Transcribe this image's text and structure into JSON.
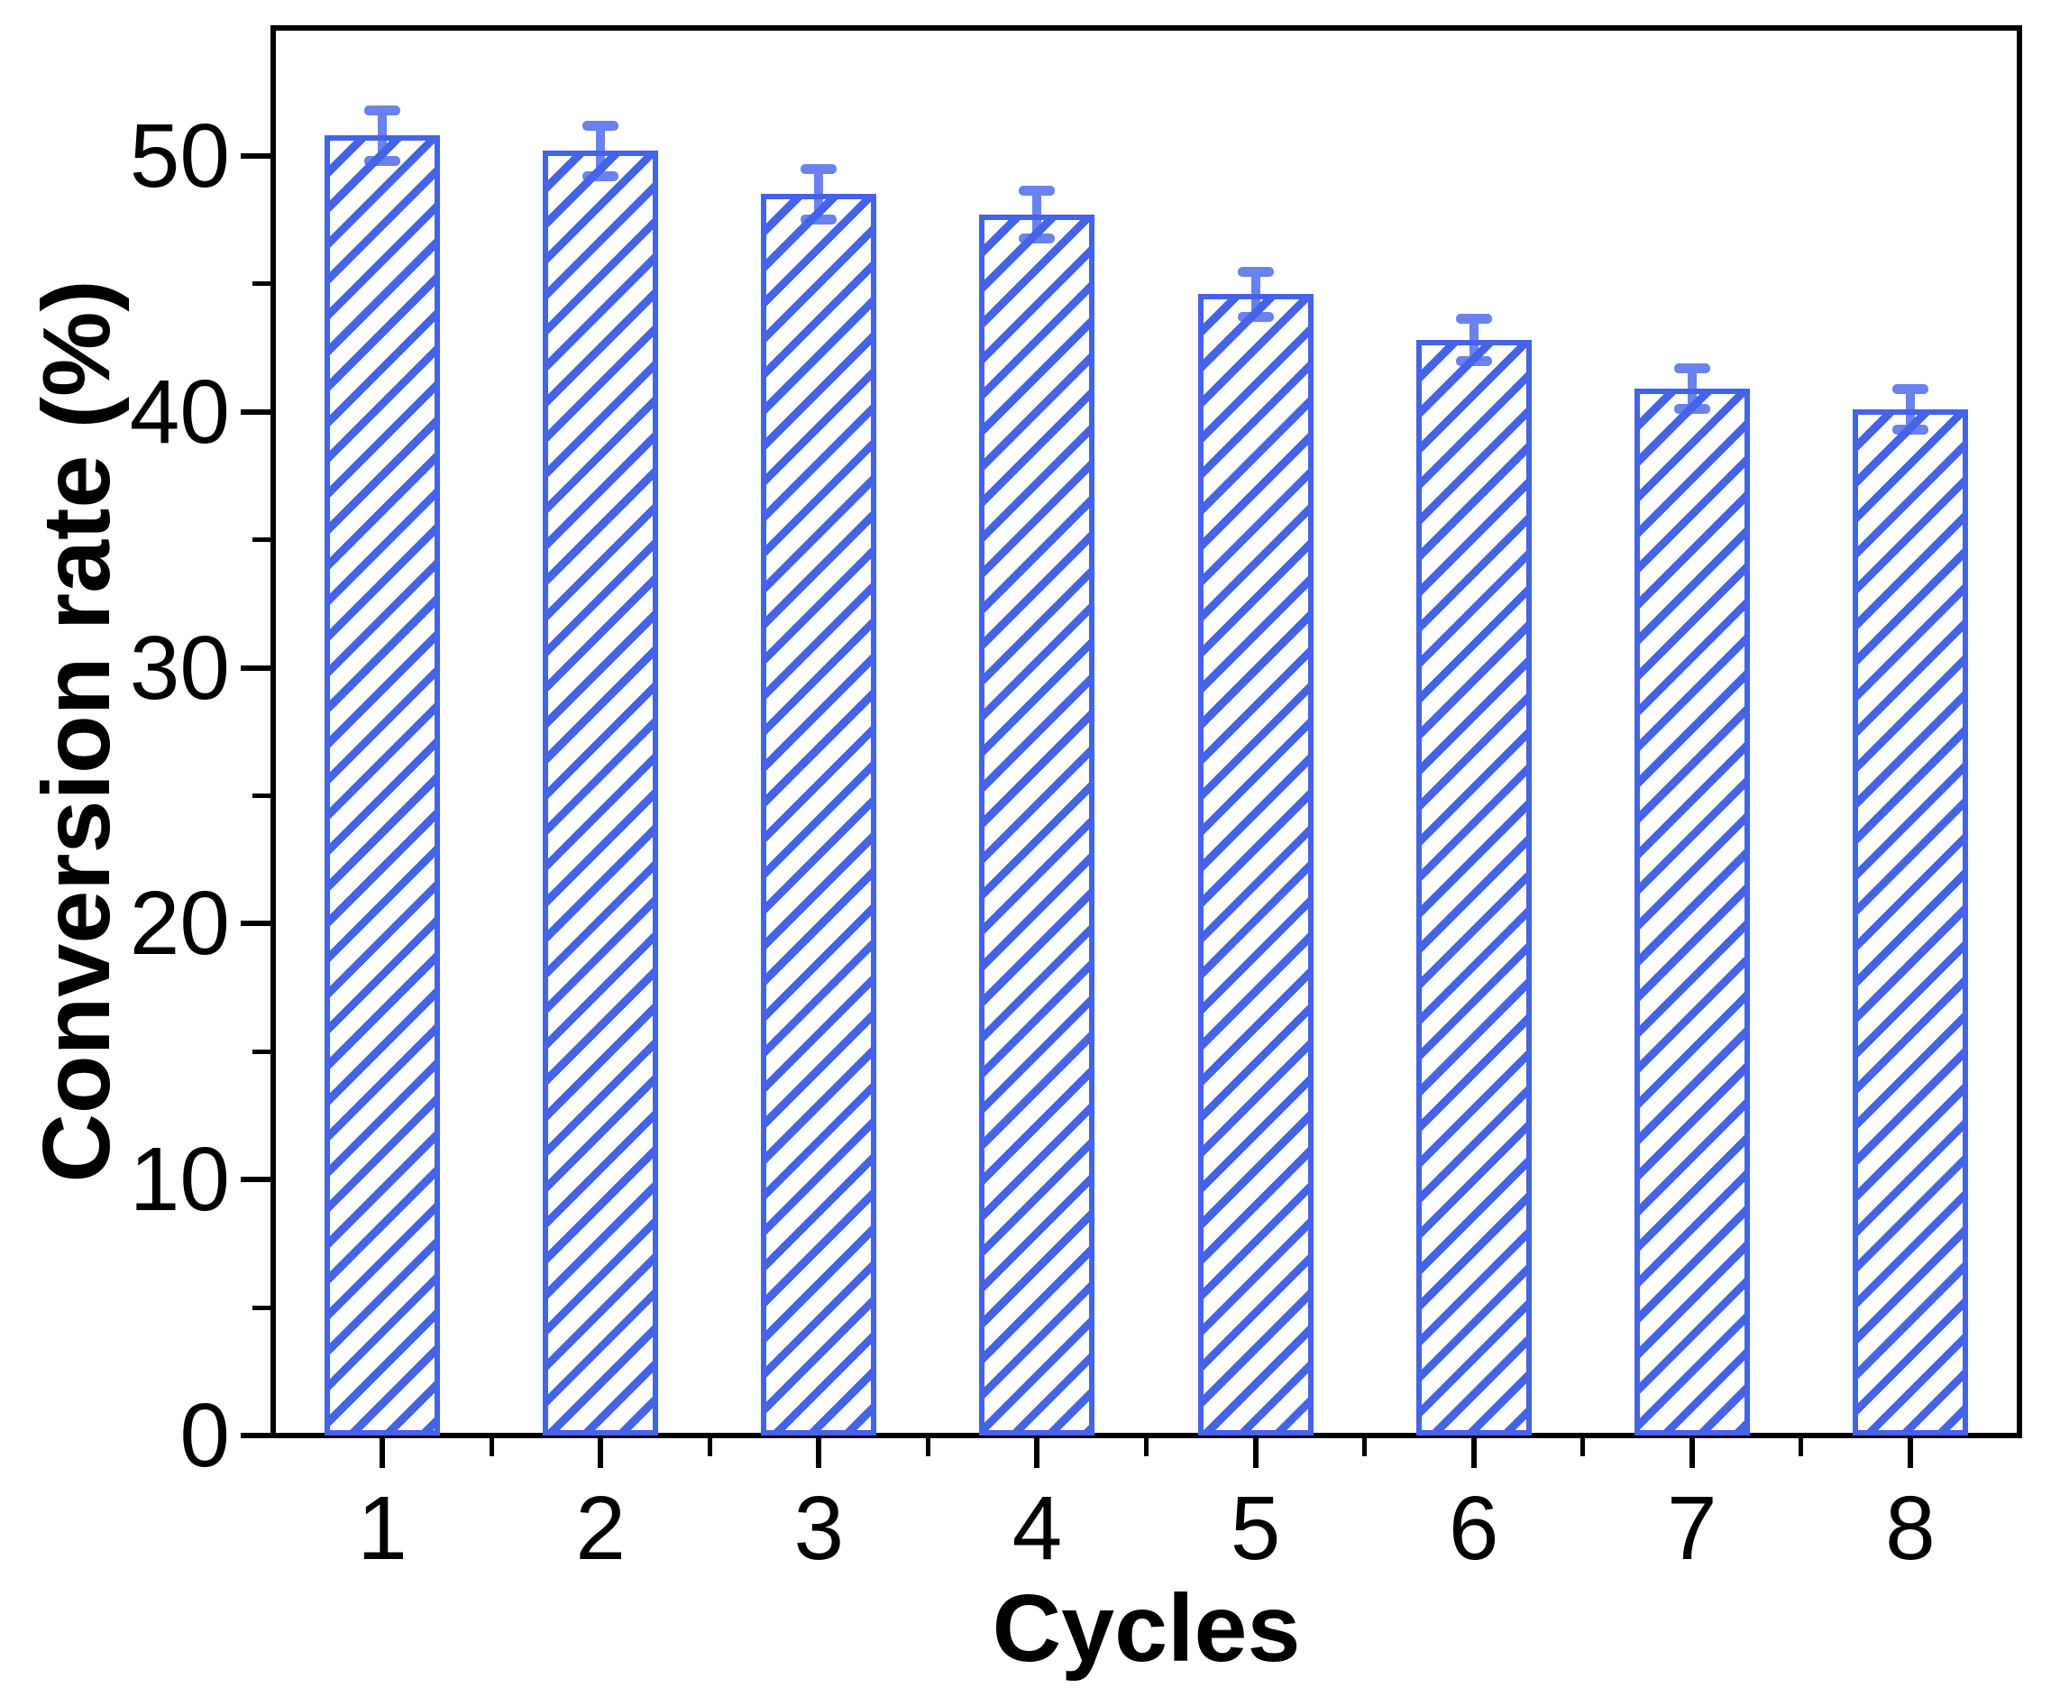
{
  "figure": {
    "background": "#ffffff",
    "frame_color": "#000000",
    "text_color": "#000000"
  },
  "chart_data": {
    "type": "bar",
    "title": "",
    "xlabel": "Cycles",
    "ylabel": "Conversion rate (%)",
    "categories": [
      "1",
      "2",
      "3",
      "4",
      "5",
      "6",
      "7",
      "8"
    ],
    "values": [
      50.8,
      50.2,
      48.5,
      47.7,
      44.6,
      42.8,
      40.9,
      40.1
    ],
    "errors": [
      1.0,
      1.0,
      1.0,
      0.95,
      0.9,
      0.85,
      0.8,
      0.8
    ],
    "ylim": [
      0,
      55
    ],
    "yticks_major": [
      0,
      10,
      20,
      30,
      40,
      50
    ],
    "yticks_minor": [
      5,
      15,
      25,
      35,
      45
    ],
    "bar_color": "#4463e9",
    "errorbar_color": "#4463e9",
    "hatch": "diagonal-forward",
    "grid": false,
    "legend": false
  }
}
